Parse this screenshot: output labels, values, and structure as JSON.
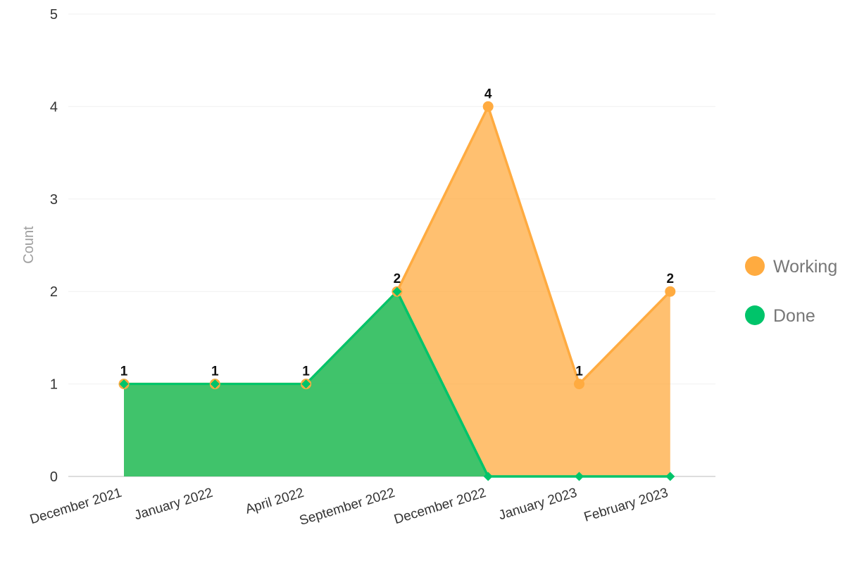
{
  "chart_data": {
    "type": "area",
    "categories": [
      "December 2021",
      "January 2022",
      "April 2022",
      "September 2022",
      "December 2022",
      "January 2023",
      "February 2023"
    ],
    "series": [
      {
        "name": "Working",
        "values": [
          1,
          1,
          1,
          2,
          4,
          1,
          2
        ],
        "color": "#ffab40"
      },
      {
        "name": "Done",
        "values": [
          1,
          1,
          1,
          2,
          0,
          0,
          0
        ],
        "color": "#00c46a"
      }
    ],
    "ylabel": "Count",
    "ylim": [
      0,
      5
    ],
    "yticks": [
      0,
      1,
      2,
      3,
      4,
      5
    ],
    "grid": true,
    "legend_position": "right",
    "data_labels_series": "Working"
  }
}
